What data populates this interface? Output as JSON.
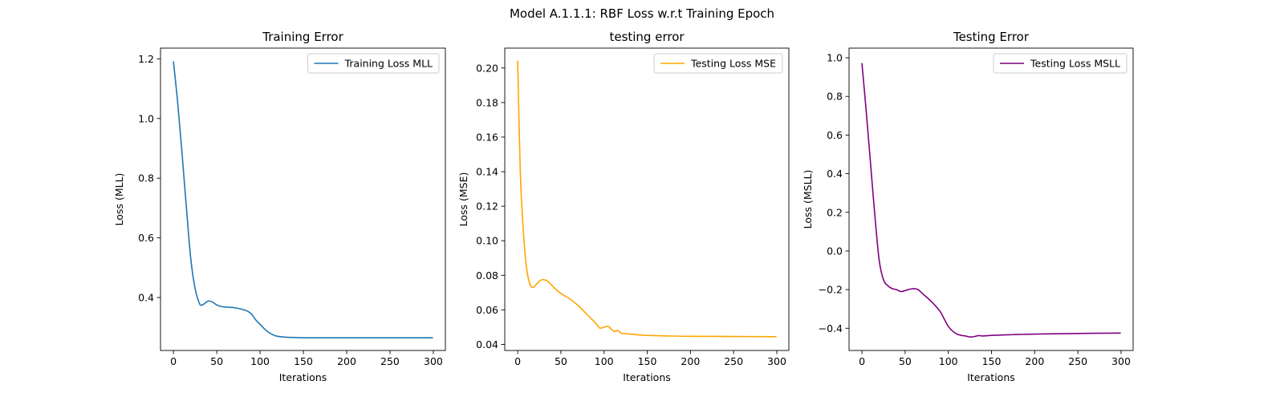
{
  "figure": {
    "suptitle": "Model A.1.1.1: RBF Loss w.r.t Training Epoch"
  },
  "chart_data": [
    {
      "type": "line",
      "title": "Training Error",
      "xlabel": "Iterations",
      "ylabel": "Loss (MLL)",
      "xlim": [
        -14.95,
        313.95
      ],
      "ylim": [
        0.2225,
        1.236
      ],
      "xticks": [
        0,
        50,
        100,
        150,
        200,
        250,
        300
      ],
      "yticks": [
        0.4,
        0.6,
        0.8,
        1.0,
        1.2
      ],
      "ytick_labels": [
        "0.4",
        "0.6",
        "0.8",
        "1.0",
        "1.2"
      ],
      "legend": "top-right",
      "grid": false,
      "series": [
        {
          "name": "Training Loss MLL",
          "color": "#1f77b4",
          "x": [
            0,
            5,
            10,
            15,
            20,
            25,
            30,
            33,
            36,
            40,
            45,
            50,
            55,
            60,
            70,
            80,
            85,
            90,
            95,
            100,
            105,
            110,
            115,
            120,
            130,
            140,
            150,
            175,
            200,
            250,
            299
          ],
          "y": [
            1.19,
            1.05,
            0.88,
            0.7,
            0.53,
            0.43,
            0.38,
            0.375,
            0.38,
            0.388,
            0.385,
            0.375,
            0.37,
            0.368,
            0.366,
            0.36,
            0.355,
            0.345,
            0.325,
            0.31,
            0.295,
            0.283,
            0.275,
            0.27,
            0.267,
            0.266,
            0.265,
            0.265,
            0.265,
            0.265,
            0.265
          ]
        }
      ]
    },
    {
      "type": "line",
      "title": "testing error",
      "xlabel": "Iterations",
      "ylabel": "Loss (MSE)",
      "xlim": [
        -14.95,
        313.95
      ],
      "ylim": [
        0.0365,
        0.2115
      ],
      "xticks": [
        0,
        50,
        100,
        150,
        200,
        250,
        300
      ],
      "yticks": [
        0.04,
        0.06,
        0.08,
        0.1,
        0.12,
        0.14,
        0.16,
        0.18,
        0.2
      ],
      "ytick_labels": [
        "0.04",
        "0.06",
        "0.08",
        "0.10",
        "0.12",
        "0.14",
        "0.16",
        "0.18",
        "0.20"
      ],
      "legend": "top-right",
      "grid": false,
      "series": [
        {
          "name": "Testing Loss MSE",
          "color": "#ffa500",
          "x": [
            0,
            3,
            6,
            9,
            12,
            15,
            18,
            22,
            26,
            30,
            35,
            40,
            45,
            50,
            55,
            60,
            70,
            80,
            90,
            95,
            100,
            105,
            108,
            112,
            116,
            120,
            125,
            130,
            135,
            140,
            150,
            175,
            200,
            250,
            299
          ],
          "y": [
            0.204,
            0.14,
            0.11,
            0.09,
            0.079,
            0.074,
            0.073,
            0.075,
            0.077,
            0.0775,
            0.0765,
            0.074,
            0.0715,
            0.0695,
            0.068,
            0.0665,
            0.0625,
            0.0575,
            0.0525,
            0.0495,
            0.05,
            0.0505,
            0.049,
            0.0475,
            0.048,
            0.0465,
            0.0462,
            0.046,
            0.0458,
            0.0455,
            0.0452,
            0.0449,
            0.0447,
            0.0446,
            0.0445
          ]
        }
      ]
    },
    {
      "type": "line",
      "title": "Testing Error",
      "xlabel": "Iterations",
      "ylabel": "Loss (MSLL)",
      "xlim": [
        -14.95,
        313.95
      ],
      "ylim": [
        -0.515,
        1.05
      ],
      "xticks": [
        0,
        50,
        100,
        150,
        200,
        250,
        300
      ],
      "yticks": [
        -0.4,
        -0.2,
        0.0,
        0.2,
        0.4,
        0.6,
        0.8,
        1.0
      ],
      "ytick_labels": [
        "−0.4",
        "−0.2",
        "0.0",
        "0.2",
        "0.4",
        "0.6",
        "0.8",
        "1.0"
      ],
      "legend": "top-right",
      "grid": false,
      "series": [
        {
          "name": "Testing Loss MSLL",
          "color": "#800080",
          "x": [
            0,
            5,
            10,
            15,
            20,
            25,
            30,
            35,
            40,
            45,
            50,
            55,
            60,
            65,
            70,
            80,
            90,
            95,
            100,
            105,
            110,
            115,
            120,
            125,
            130,
            135,
            140,
            150,
            175,
            200,
            250,
            299
          ],
          "y": [
            0.97,
            0.72,
            0.45,
            0.18,
            -0.05,
            -0.15,
            -0.18,
            -0.195,
            -0.2,
            -0.21,
            -0.205,
            -0.198,
            -0.195,
            -0.2,
            -0.22,
            -0.26,
            -0.31,
            -0.35,
            -0.39,
            -0.415,
            -0.43,
            -0.437,
            -0.44,
            -0.445,
            -0.443,
            -0.438,
            -0.44,
            -0.437,
            -0.433,
            -0.43,
            -0.427,
            -0.425
          ]
        }
      ]
    }
  ]
}
